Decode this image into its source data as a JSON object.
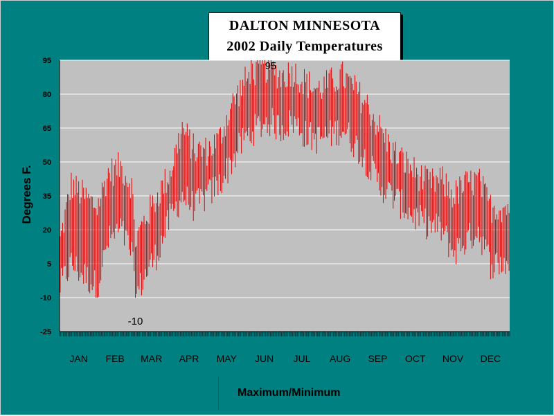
{
  "chart_data": {
    "type": "line",
    "title": "DALTON MINNESOTA",
    "subtitle": "2002 Daily Temperatures",
    "xlabel": "",
    "ylabel": "Degrees F.",
    "ylim": [
      -25,
      95
    ],
    "yticks": [
      95,
      80,
      65,
      50,
      35,
      20,
      5,
      -10,
      -25
    ],
    "months": [
      "JAN",
      "FEB",
      "MAR",
      "APR",
      "MAY",
      "JUN",
      "JUL",
      "AUG",
      "SEP",
      "OCT",
      "NOV",
      "DEC"
    ],
    "legend": {
      "label": "Maximum/Minimum",
      "placement": "bottom-center"
    },
    "annotations": [
      {
        "text": "95",
        "day": 156,
        "value": 95
      },
      {
        "text": "-10",
        "day": 62,
        "value": -10
      }
    ],
    "grid": true,
    "series_color": "#e00000",
    "monthly_profile": {
      "description": "daily max/min range bars; anchor values (day, max, min)",
      "anchors": [
        [
          1,
          15,
          -5
        ],
        [
          10,
          40,
          5
        ],
        [
          20,
          35,
          0
        ],
        [
          31,
          30,
          -5
        ],
        [
          40,
          45,
          15
        ],
        [
          50,
          48,
          20
        ],
        [
          59,
          40,
          10
        ],
        [
          62,
          15,
          -10
        ],
        [
          70,
          25,
          0
        ],
        [
          80,
          35,
          10
        ],
        [
          90,
          45,
          25
        ],
        [
          100,
          65,
          35
        ],
        [
          110,
          55,
          30
        ],
        [
          120,
          55,
          35
        ],
        [
          130,
          60,
          40
        ],
        [
          140,
          75,
          50
        ],
        [
          150,
          85,
          60
        ],
        [
          160,
          90,
          65
        ],
        [
          170,
          92,
          68
        ],
        [
          180,
          88,
          65
        ],
        [
          190,
          90,
          68
        ],
        [
          200,
          85,
          62
        ],
        [
          210,
          82,
          60
        ],
        [
          220,
          85,
          62
        ],
        [
          230,
          88,
          65
        ],
        [
          240,
          82,
          58
        ],
        [
          250,
          75,
          50
        ],
        [
          260,
          65,
          40
        ],
        [
          270,
          55,
          35
        ],
        [
          280,
          50,
          30
        ],
        [
          290,
          45,
          25
        ],
        [
          300,
          40,
          22
        ],
        [
          310,
          42,
          20
        ],
        [
          320,
          35,
          10
        ],
        [
          330,
          40,
          15
        ],
        [
          340,
          42,
          20
        ],
        [
          350,
          30,
          5
        ],
        [
          365,
          30,
          5
        ]
      ]
    }
  }
}
